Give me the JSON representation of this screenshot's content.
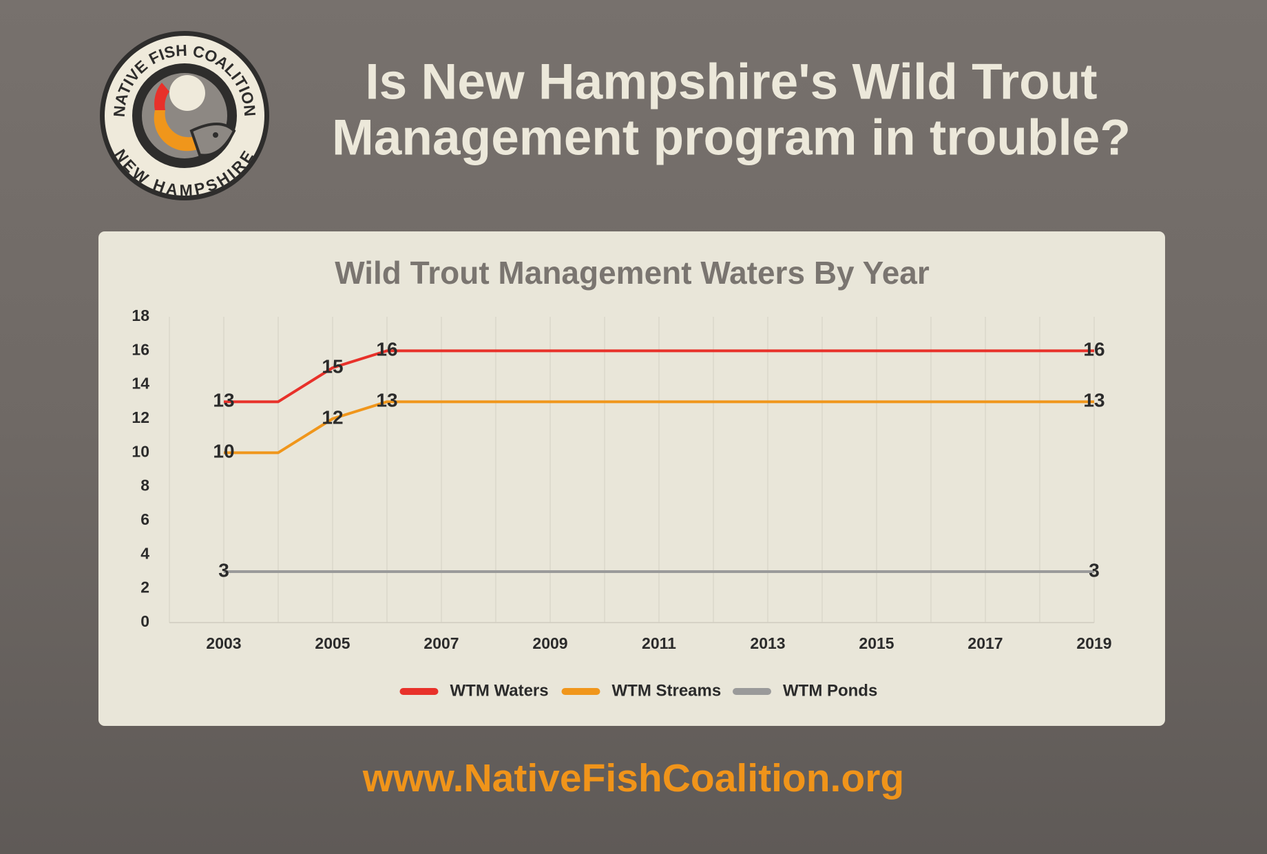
{
  "header": {
    "title_lines": [
      "Is New Hampshire's Wild Trout",
      "Management program in trouble?"
    ]
  },
  "logo": {
    "top": "NATIVE FISH COALITION",
    "bottom": "NEW HAMPSHIRE"
  },
  "chart_data": {
    "type": "line",
    "title": "Wild Trout Management Waters By Year",
    "x": [
      2003,
      2004,
      2005,
      2006,
      2007,
      2008,
      2009,
      2010,
      2011,
      2012,
      2013,
      2014,
      2015,
      2016,
      2017,
      2018,
      2019
    ],
    "series": [
      {
        "name": "WTM Waters",
        "color": "#e8312a",
        "values": [
          13,
          13,
          15,
          16,
          16,
          16,
          16,
          16,
          16,
          16,
          16,
          16,
          16,
          16,
          16,
          16,
          16
        ],
        "labels_at": [
          0,
          2,
          3,
          16
        ]
      },
      {
        "name": "WTM Streams",
        "color": "#f0961b",
        "values": [
          10,
          10,
          12,
          13,
          13,
          13,
          13,
          13,
          13,
          13,
          13,
          13,
          13,
          13,
          13,
          13,
          13
        ],
        "labels_at": [
          0,
          2,
          3,
          16
        ]
      },
      {
        "name": "WTM Ponds",
        "color": "#9a9a9a",
        "values": [
          3,
          3,
          3,
          3,
          3,
          3,
          3,
          3,
          3,
          3,
          3,
          3,
          3,
          3,
          3,
          3,
          3
        ],
        "labels_at": [
          0,
          16
        ]
      }
    ],
    "xlim": [
      2002,
      2019
    ],
    "xticks": [
      2003,
      2005,
      2007,
      2009,
      2011,
      2013,
      2015,
      2017,
      2019
    ],
    "xgridlines": [
      2002,
      2003,
      2004,
      2005,
      2006,
      2007,
      2008,
      2009,
      2010,
      2011,
      2012,
      2013,
      2014,
      2015,
      2016,
      2017,
      2018,
      2019
    ],
    "ylim": [
      0,
      18
    ],
    "yticks": [
      0,
      2,
      4,
      6,
      8,
      10,
      12,
      14,
      16,
      18
    ],
    "grid": true,
    "legend": "bottom"
  },
  "footer": {
    "url": "www.NativeFishCoalition.org"
  }
}
